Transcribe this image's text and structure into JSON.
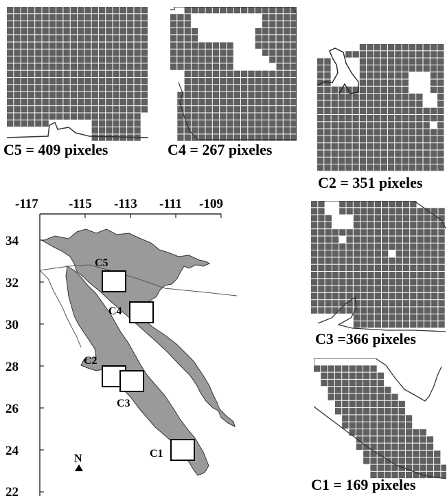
{
  "panels": [
    {
      "id": "C5",
      "caption": "C5 = 409 pixeles"
    },
    {
      "id": "C4",
      "caption": "C4 = 267 pixeles"
    },
    {
      "id": "C2",
      "caption": "C2 = 351 pixeles"
    },
    {
      "id": "C3",
      "caption": "C3 =366 pixeles"
    },
    {
      "id": "C1",
      "caption": "C1 = 169 pixeles"
    }
  ],
  "map": {
    "lon_ticks": [
      "-117",
      "-115",
      "-113",
      "-111",
      "-109"
    ],
    "lat_ticks": [
      "34",
      "32",
      "30",
      "28",
      "26",
      "24",
      "22"
    ],
    "boxes": [
      "C5",
      "C4",
      "C2",
      "C3",
      "C1"
    ],
    "north_label": "N"
  },
  "colors": {
    "cell": "#5f5f5f",
    "land": "#9a9a9a",
    "coast": "#333333"
  }
}
